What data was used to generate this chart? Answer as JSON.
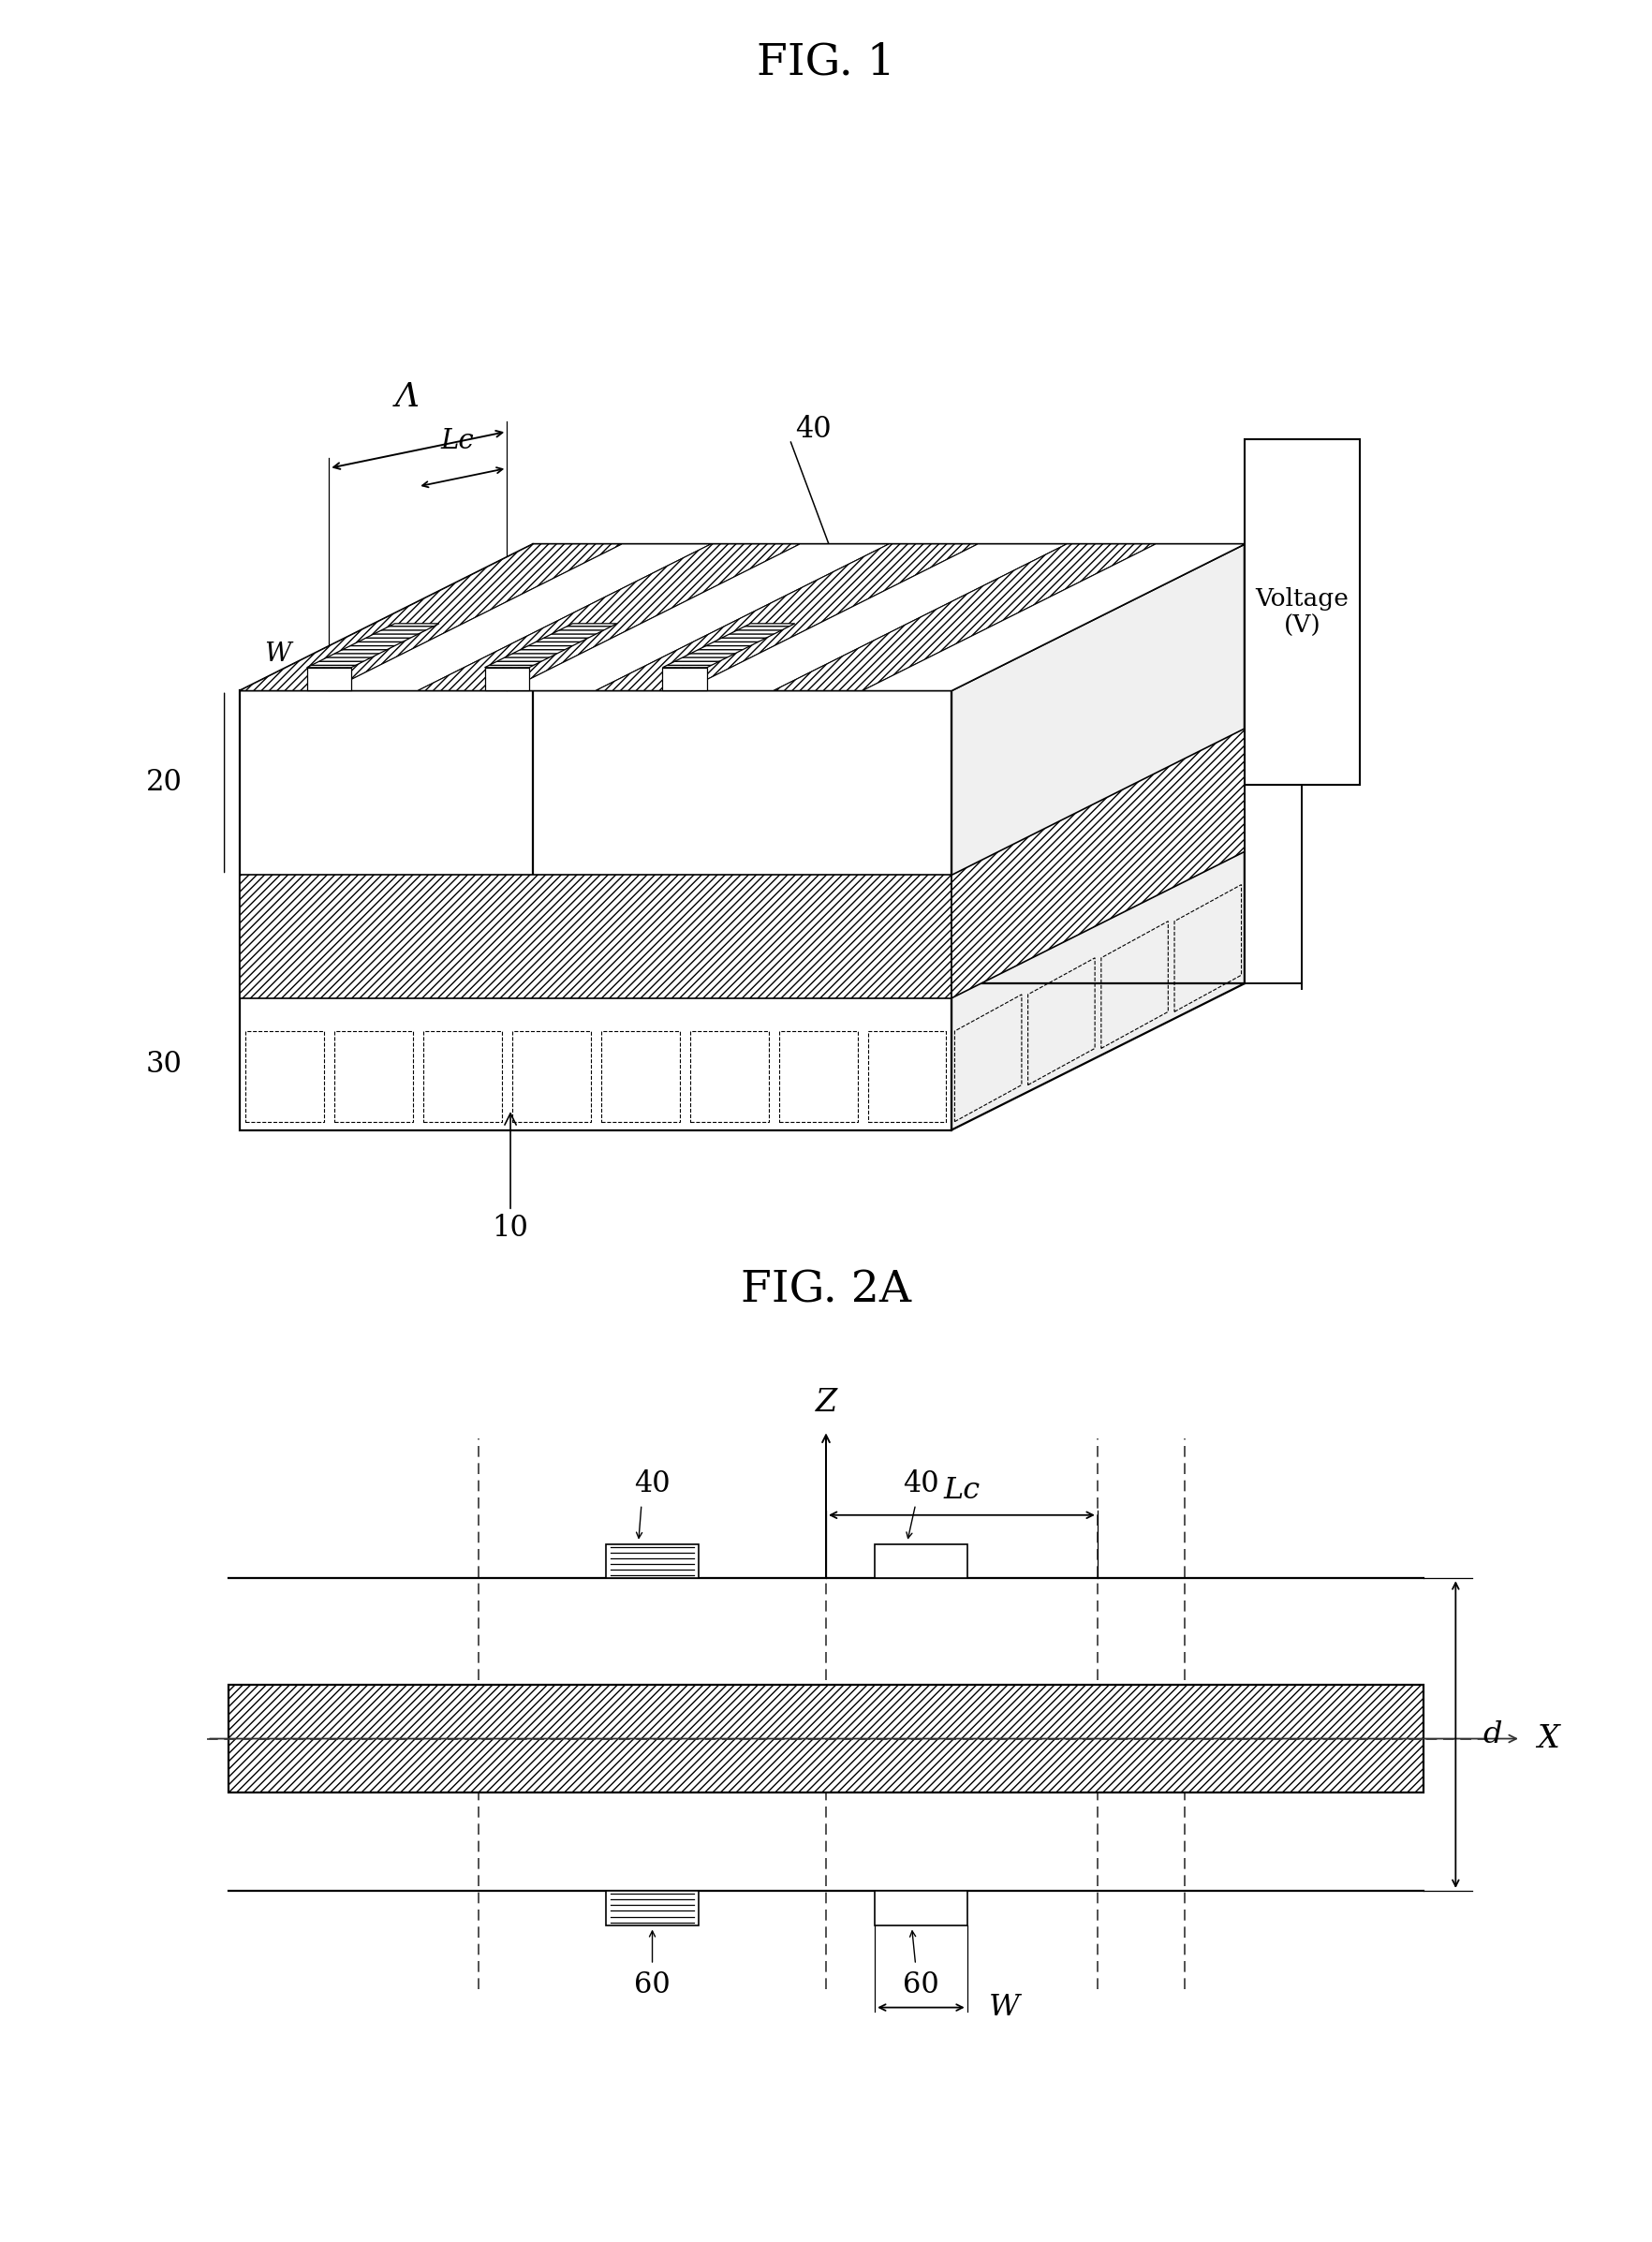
{
  "fig1_title": "FIG. 1",
  "fig2a_title": "FIG. 2A",
  "label_40": "40",
  "label_20": "20",
  "label_30": "30",
  "label_10": "10",
  "label_Lc": "Lc",
  "label_W": "W",
  "label_Lambda": "Λ",
  "label_d": "d",
  "label_X": "X",
  "label_Z": "Z",
  "label_60a": "60",
  "label_60b": "60",
  "label_40a": "40",
  "label_40b": "40",
  "voltage_text": "Voltage\n(V)",
  "bg_color": "#ffffff",
  "line_color": "#000000"
}
